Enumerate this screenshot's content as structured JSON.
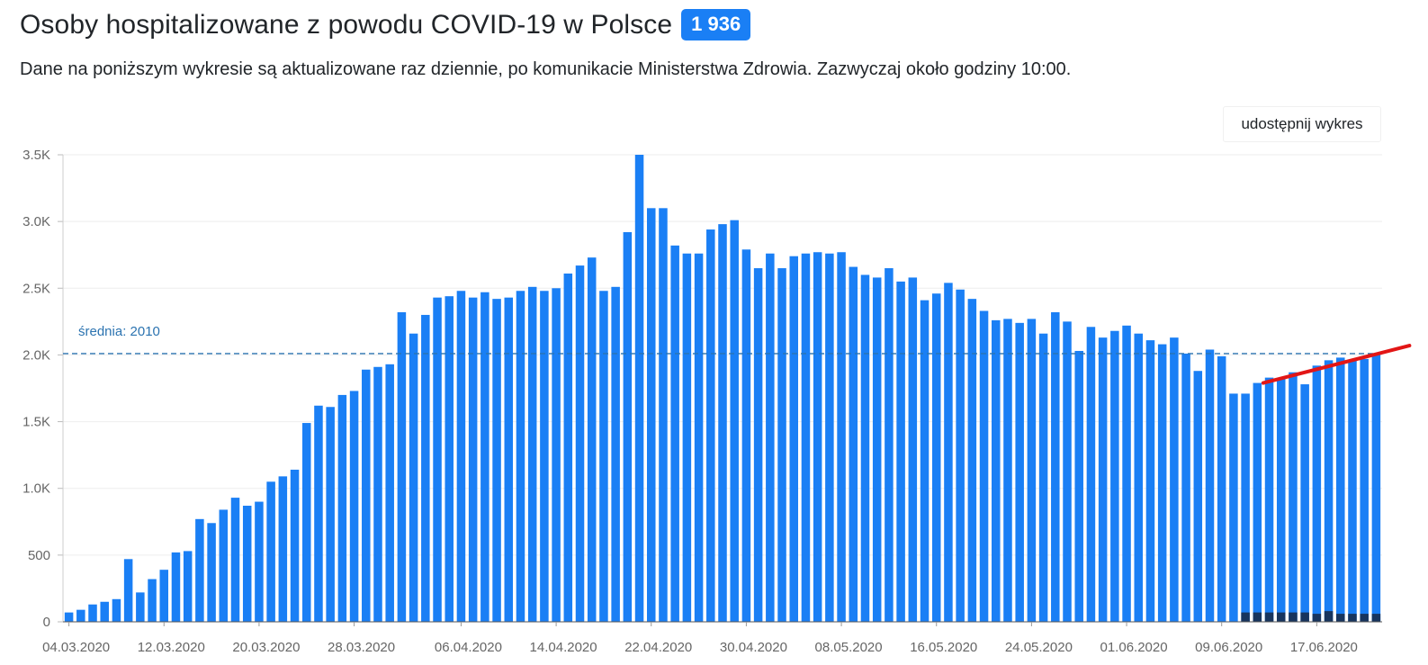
{
  "header": {
    "title": "Osoby hospitalizowane z powodu COVID-19 w Polsce",
    "badge": "1 936",
    "subtitle": "Dane na poniższym wykresie są aktualizowane raz dziennie, po komunikacie Ministerstwa Zdrowia. Zazwyczaj około godziny 10:00.",
    "share_label": "udostępnij wykres"
  },
  "colors": {
    "bar": "#1a7ff5",
    "bar_dark": "#18355e",
    "average_line": "#2b73b0",
    "trend_line": "#e21616",
    "grid": "#eeeeee",
    "badge": "#1a7ff5"
  },
  "chart_data": {
    "type": "bar",
    "start_date": "04.03.2020",
    "x_tick_labels": [
      "04.03.2020",
      "12.03.2020",
      "20.03.2020",
      "28.03.2020",
      "06.04.2020",
      "14.04.2020",
      "22.04.2020",
      "30.04.2020",
      "08.05.2020",
      "16.05.2020",
      "24.05.2020",
      "01.06.2020",
      "09.06.2020",
      "17.06.2020"
    ],
    "y_tick_labels": [
      "0",
      "500",
      "1.0K",
      "1.5K",
      "2.0K",
      "2.5K",
      "3.0K",
      "3.5K"
    ],
    "ylim": [
      0,
      3500
    ],
    "grid": true,
    "average": {
      "label": "średnia: 2010",
      "value": 2010
    },
    "series": [
      {
        "values": [
          70,
          90,
          130,
          150,
          170,
          470,
          220,
          320,
          390,
          520,
          530,
          770,
          740,
          840,
          930,
          870,
          900,
          1050,
          1090,
          1140,
          1490,
          1620,
          1610,
          1700,
          1730,
          1890,
          1910,
          1930,
          2320,
          2160,
          2300,
          2430,
          2440,
          2480,
          2430,
          2470,
          2420,
          2430,
          2480,
          2510,
          2480,
          2500,
          2610,
          2670,
          2730,
          2480,
          2510,
          2920,
          3500,
          3100,
          3100,
          2820,
          2760,
          2760,
          2940,
          2980,
          3010,
          2790,
          2650,
          2760,
          2650,
          2740,
          2760,
          2770,
          2760,
          2770,
          2660,
          2600,
          2580,
          2650,
          2550,
          2580,
          2410,
          2460,
          2540,
          2490,
          2420,
          2330,
          2260,
          2270,
          2240,
          2270,
          2160,
          2320,
          2250,
          2030,
          2210,
          2130,
          2180,
          2220,
          2160,
          2110,
          2080,
          2130,
          2010,
          1880,
          2040,
          1990,
          1710,
          1710,
          1790,
          1830,
          1820,
          1870,
          1780,
          1920,
          1960,
          1980,
          1960,
          1970,
          2010
        ]
      },
      {
        "values": [
          0,
          0,
          0,
          0,
          0,
          0,
          0,
          0,
          0,
          0,
          0,
          0,
          0,
          0,
          0,
          0,
          0,
          0,
          0,
          0,
          0,
          0,
          0,
          0,
          0,
          0,
          0,
          0,
          0,
          0,
          0,
          0,
          0,
          0,
          0,
          0,
          0,
          0,
          0,
          0,
          0,
          0,
          0,
          0,
          0,
          0,
          0,
          0,
          0,
          0,
          0,
          0,
          0,
          0,
          0,
          0,
          0,
          0,
          0,
          0,
          0,
          0,
          0,
          0,
          0,
          0,
          0,
          0,
          0,
          0,
          0,
          0,
          0,
          0,
          0,
          0,
          0,
          0,
          0,
          0,
          0,
          0,
          0,
          0,
          0,
          0,
          0,
          0,
          0,
          0,
          0,
          0,
          0,
          0,
          0,
          0,
          0,
          0,
          0,
          70,
          70,
          70,
          70,
          70,
          70,
          60,
          80,
          60,
          60,
          60,
          60
        ]
      }
    ],
    "trend_line": {
      "x": [
        "13.06.2020",
        "25.06.2020"
      ],
      "y": [
        1790,
        2070
      ]
    }
  }
}
